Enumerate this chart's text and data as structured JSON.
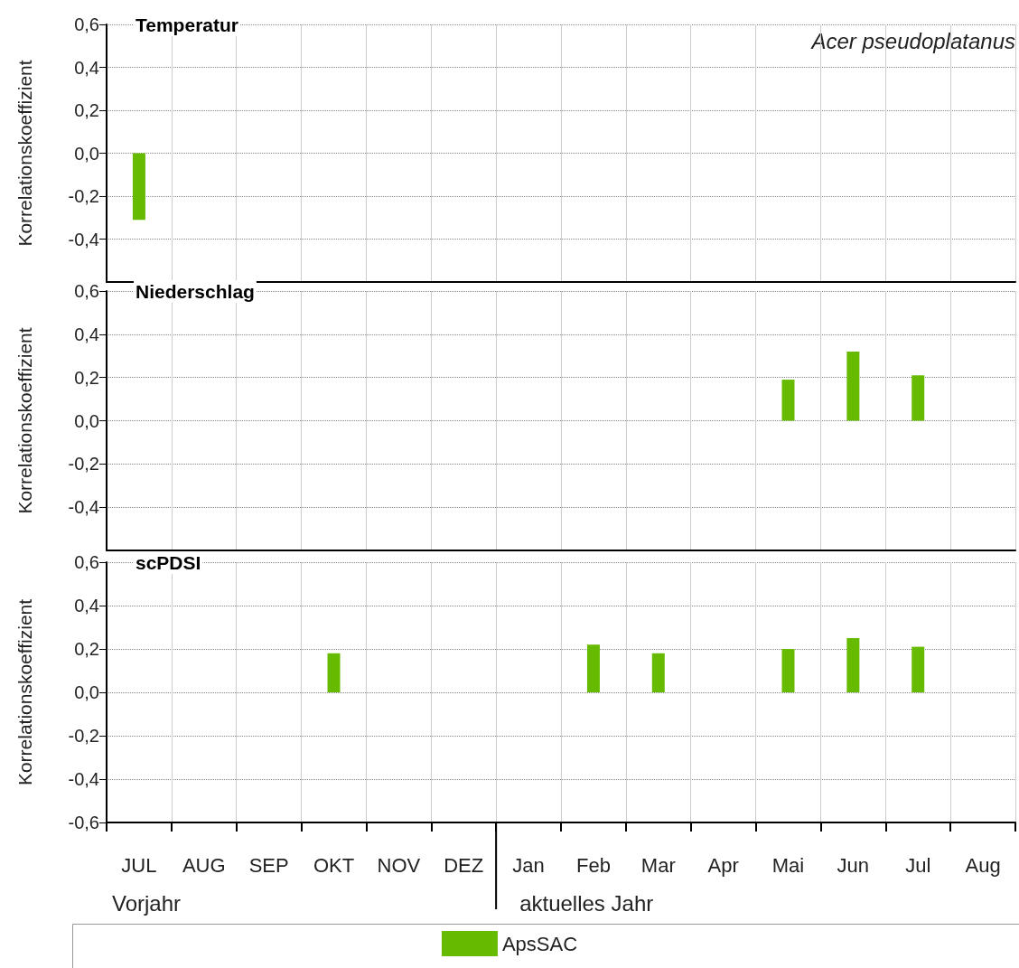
{
  "chart_data": [
    {
      "type": "bar",
      "title": "Temperatur",
      "ylabel": "Korrelationskoeffizient",
      "annotations": [
        "Acer pseudoplatanus"
      ],
      "categories": [
        null,
        null,
        null,
        null,
        null,
        null,
        null,
        null,
        null,
        null,
        null,
        null,
        null,
        null
      ],
      "series": [
        {
          "color": "#66bb00",
          "values": [
            -0.31,
            null,
            null,
            null,
            null,
            null,
            null,
            null,
            null,
            null,
            null,
            null,
            null,
            null
          ]
        }
      ],
      "ylim": [
        -0.6,
        0.6
      ],
      "yticks": [
        {
          "value": -0.4,
          "label": "-0,4"
        },
        {
          "value": -0.2,
          "label": "-0,2"
        },
        {
          "value": 0,
          "label": "0,0"
        },
        {
          "value": 0.2,
          "label": "0,2"
        },
        {
          "value": 0.4,
          "label": "0,4"
        },
        {
          "value": 0.6,
          "label": "0,6"
        }
      ],
      "grid": true,
      "tick_labels": "y",
      "legend": false
    },
    {
      "type": "bar",
      "title": "Niederschlag",
      "ylabel": "Korrelationskoeffizient",
      "categories": [
        null,
        null,
        null,
        null,
        null,
        null,
        null,
        null,
        null,
        null,
        null,
        null,
        null,
        null
      ],
      "series": [
        {
          "color": "#66bb00",
          "values": [
            null,
            null,
            null,
            null,
            null,
            null,
            null,
            null,
            null,
            null,
            0.19,
            0.32,
            0.21,
            null
          ]
        }
      ],
      "ylim": [
        -0.6,
        0.6
      ],
      "yticks": [
        {
          "value": -0.4,
          "label": "-0,4"
        },
        {
          "value": -0.2,
          "label": "-0,2"
        },
        {
          "value": 0,
          "label": "0,0"
        },
        {
          "value": 0.2,
          "label": "0,2"
        },
        {
          "value": 0.4,
          "label": "0,4"
        },
        {
          "value": 0.6,
          "label": "0,6"
        }
      ],
      "grid": true,
      "tick_labels": "y",
      "legend": false
    },
    {
      "type": "bar",
      "title": "scPDSI",
      "ylabel": "Korrelationskoeffizient",
      "annotations": [
        "Vorjahr",
        "aktuelles Jahr"
      ],
      "categories": [
        "JUL",
        "AUG",
        "SEP",
        "OKT",
        "NOV",
        "DEZ",
        "Jan",
        "Feb",
        "Mar",
        "Apr",
        "Mai",
        "Jun",
        "Jul",
        "Aug"
      ],
      "series": [
        {
          "name": "ApsSAC",
          "color": "#66bb00",
          "values": [
            null,
            null,
            null,
            0.18,
            null,
            null,
            null,
            0.22,
            0.18,
            null,
            0.2,
            0.25,
            0.21,
            null
          ]
        }
      ],
      "ylim": [
        -0.6,
        0.6
      ],
      "yticks": [
        {
          "value": -0.6,
          "label": "-0,6"
        },
        {
          "value": -0.4,
          "label": "-0,4"
        },
        {
          "value": -0.2,
          "label": "-0,2"
        },
        {
          "value": 0,
          "label": "0,0"
        },
        {
          "value": 0.2,
          "label": "0,2"
        },
        {
          "value": 0.4,
          "label": "0,4"
        },
        {
          "value": 0.6,
          "label": "0,6"
        }
      ],
      "grid": true,
      "legend": "bottom"
    }
  ]
}
